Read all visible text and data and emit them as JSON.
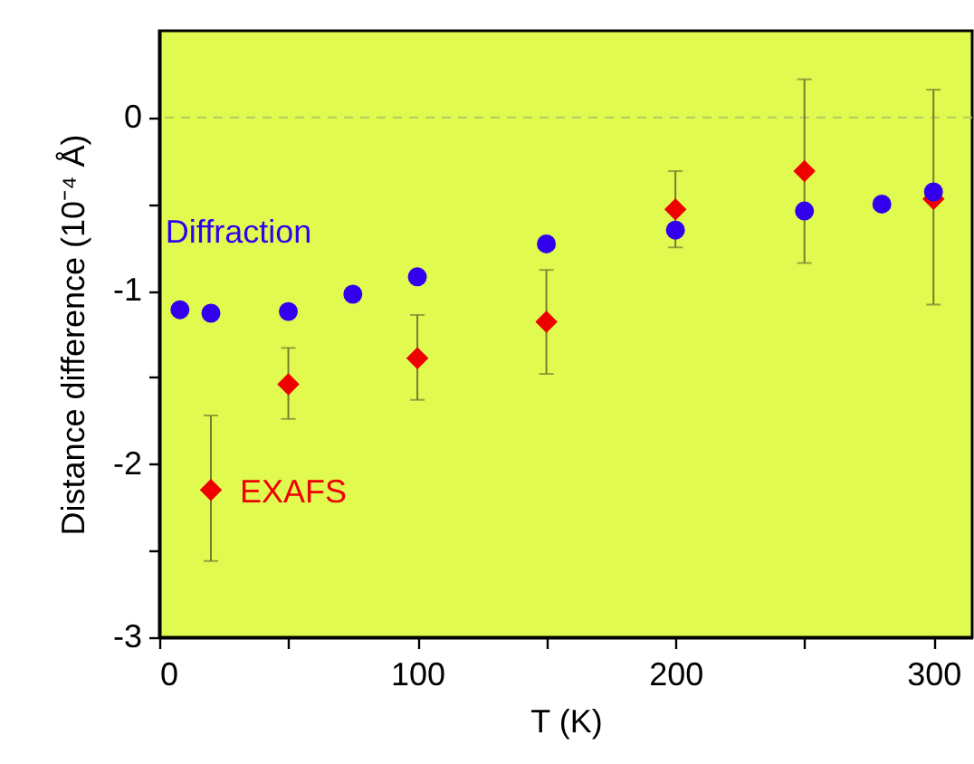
{
  "chart_data": {
    "type": "scatter",
    "xlabel": "T (K)",
    "ylabel": "Distance difference (10⁻⁴ Å)",
    "xlim": [
      0,
      315
    ],
    "xticks": [
      0,
      {
        "value": 50,
        "label": null
      },
      100,
      {
        "value": 150,
        "label": null
      },
      200,
      {
        "value": 250,
        "label": null
      },
      300
    ],
    "ylim": [
      -3,
      0.5
    ],
    "yticks": [
      -3,
      {
        "value": -2.5,
        "label": null
      },
      -2,
      {
        "value": -1.5,
        "label": null
      },
      -1,
      {
        "value": -0.5,
        "label": null
      },
      0
    ],
    "grid": false,
    "legend": false,
    "ref_lines": [
      {
        "axis": "y",
        "value": 0,
        "line_style": "dashed",
        "color": "#b8c860"
      }
    ],
    "series": [
      {
        "name": "Diffraction",
        "color": "#3300ee",
        "marker": "circle",
        "x": [
          8,
          20,
          50,
          75,
          100,
          150,
          200,
          250,
          280,
          300
        ],
        "values": [
          -1.11,
          -1.13,
          -1.12,
          -1.02,
          -0.92,
          -0.73,
          -0.65,
          -0.54,
          -0.5,
          -0.43
        ]
      },
      {
        "name": "EXAFS",
        "color": "#ee0000",
        "marker": "diamond",
        "x": [
          20,
          50,
          100,
          150,
          200,
          250,
          300
        ],
        "values": [
          -2.15,
          -1.54,
          -1.39,
          -1.18,
          -0.53,
          -0.31,
          -0.47
        ],
        "errors": [
          [
            -2.56,
            -1.72
          ],
          [
            -1.74,
            -1.33
          ],
          [
            -1.63,
            -1.14
          ],
          [
            -1.48,
            -0.88
          ],
          [
            -0.75,
            -0.31
          ],
          [
            -0.84,
            0.22
          ],
          [
            -1.08,
            0.16
          ]
        ]
      }
    ]
  }
}
